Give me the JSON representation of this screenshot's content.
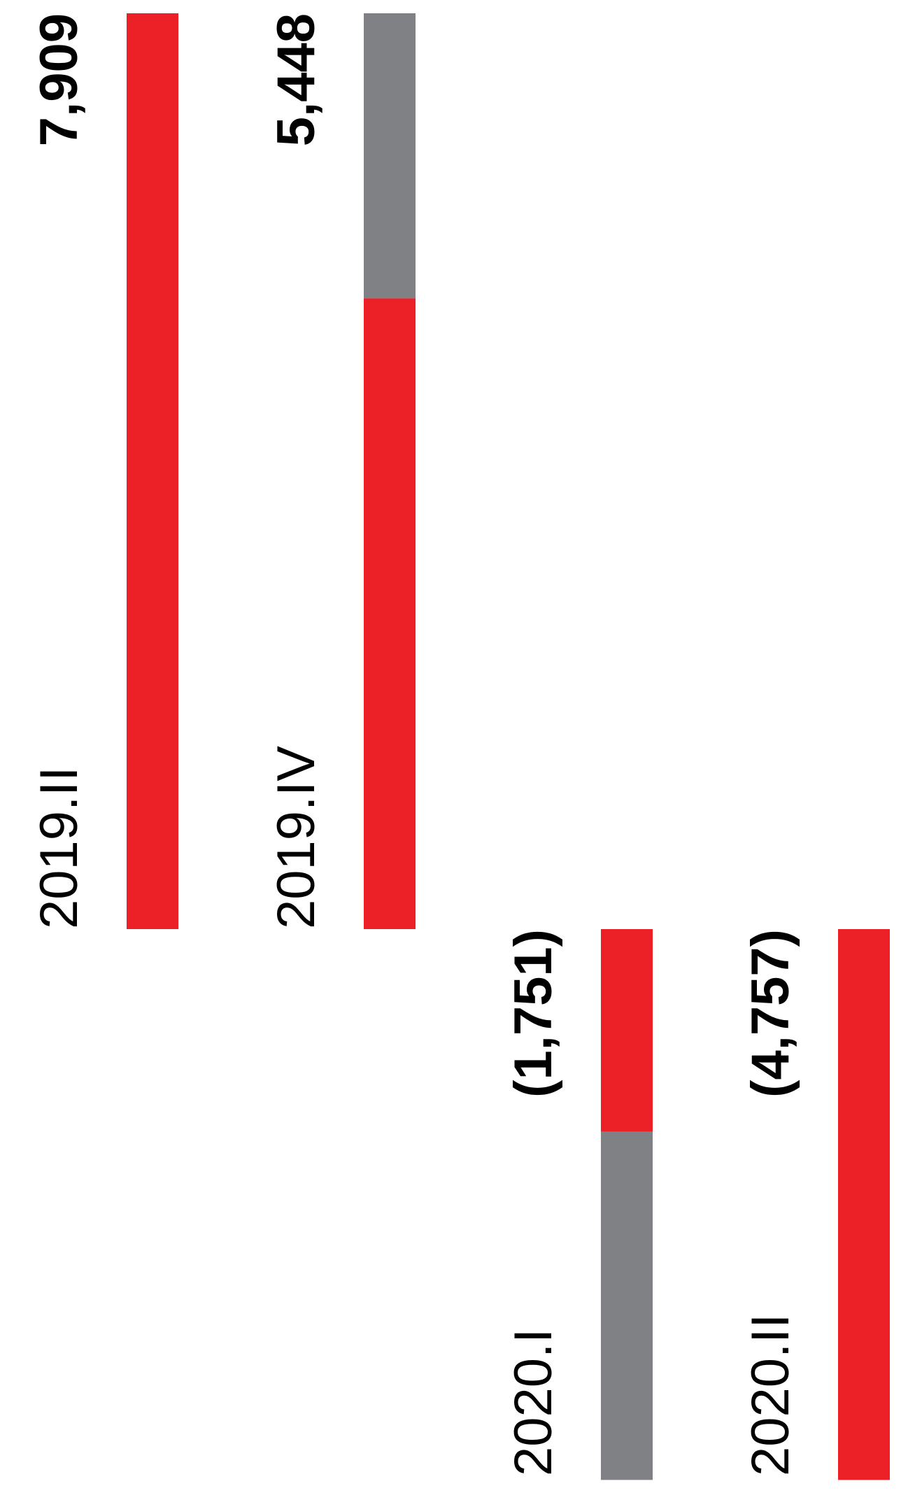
{
  "chart_data": {
    "type": "bar",
    "orientation": "horizontal-rotated",
    "categories": [
      "2019.II",
      "2019.IV",
      "2020.I",
      "2020.II"
    ],
    "values": [
      7909,
      5448,
      -1751,
      -4757
    ],
    "value_labels": [
      "7,909",
      "5,448",
      "(1,751)",
      "(4,757)"
    ],
    "segments": [
      [
        {
          "value": 7909,
          "color": "#ec2128"
        }
      ],
      [
        {
          "value": 5448,
          "color": "#ec2128"
        },
        {
          "value": 2461,
          "color": "#808184"
        }
      ],
      [
        {
          "value": -1751,
          "color": "#ec2128"
        },
        {
          "value": -3006,
          "color": "#808184"
        }
      ],
      [
        {
          "value": -4757,
          "color": "#ec2128"
        }
      ]
    ],
    "title": "",
    "xlabel": "",
    "ylabel": "",
    "xlim": [
      -4757,
      7909
    ],
    "grid": false,
    "legend": "none"
  },
  "colors": {
    "accent": "#ec2128",
    "secondary": "#808184",
    "text": "#000000",
    "background": "#ffffff"
  }
}
